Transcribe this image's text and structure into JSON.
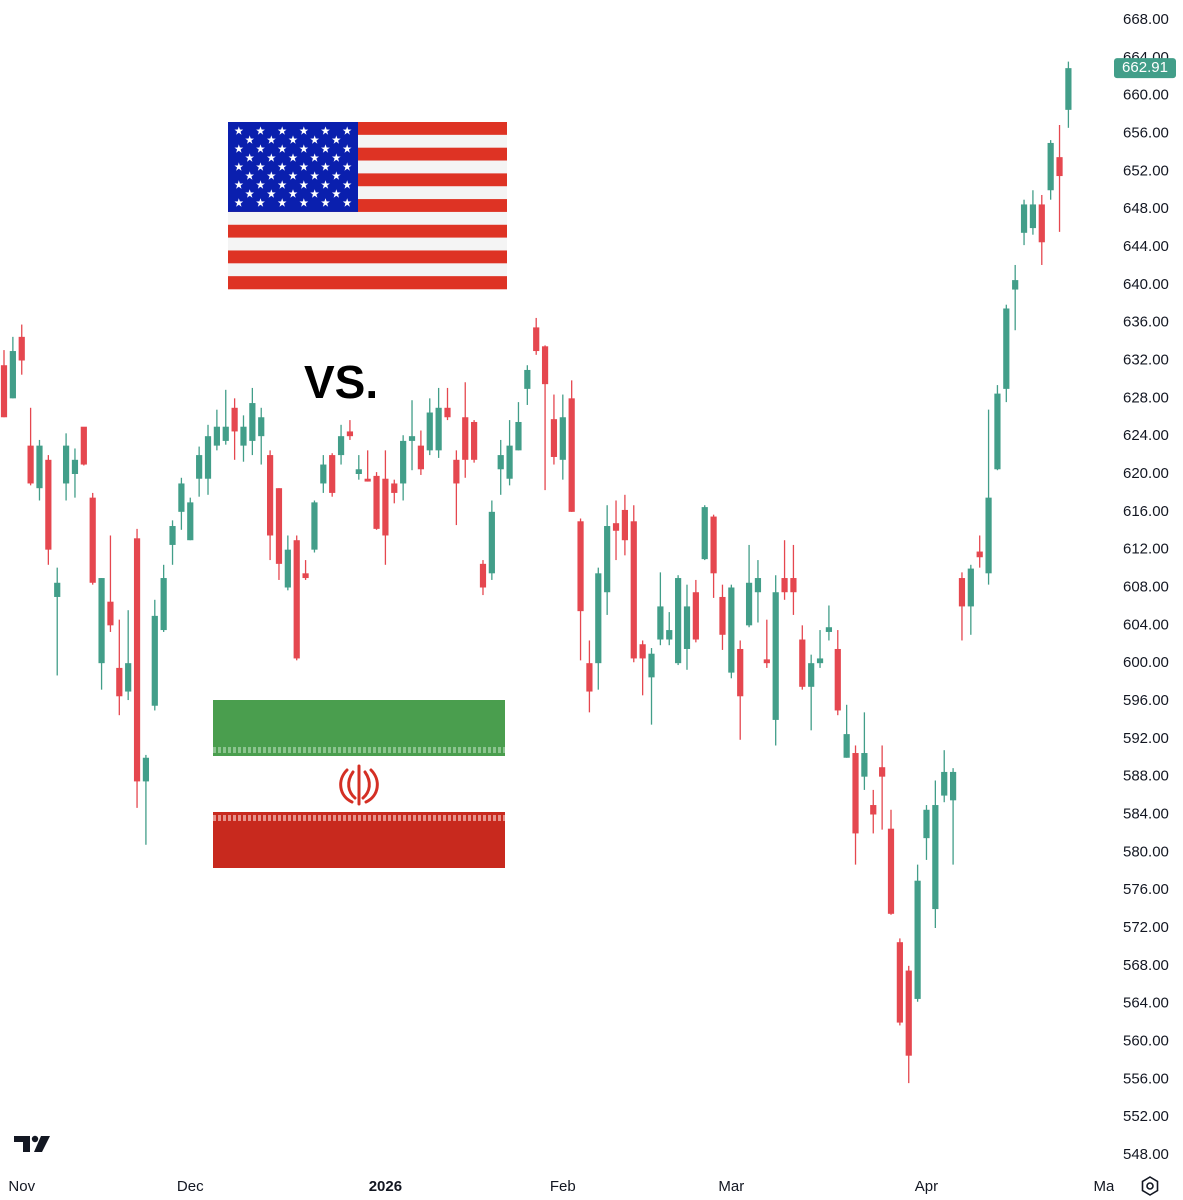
{
  "chart_data": {
    "type": "candlestick",
    "annotation": "VS.",
    "up_color": "#429e89",
    "down_color": "#e5474f",
    "grid": false,
    "categories": [
      null,
      null,
      "Nov",
      null,
      null,
      null,
      null,
      null,
      null,
      null,
      null,
      null,
      null,
      null,
      null,
      null,
      null,
      null,
      null,
      null,
      null,
      "Dec",
      null,
      null,
      null,
      null,
      null,
      null,
      null,
      null,
      null,
      null,
      null,
      null,
      null,
      null,
      null,
      null,
      null,
      null,
      null,
      null,
      null,
      "2026",
      null,
      null,
      null,
      null,
      null,
      null,
      null,
      null,
      null,
      null,
      null,
      null,
      null,
      null,
      null,
      null,
      null,
      null,
      null,
      "Feb",
      null,
      null,
      null,
      null,
      null,
      null,
      null,
      null,
      null,
      null,
      null,
      null,
      null,
      null,
      null,
      null,
      null,
      null,
      "Mar",
      null,
      null,
      null,
      null,
      null,
      null,
      null,
      null,
      null,
      null,
      null,
      null,
      null,
      null,
      null,
      null,
      null,
      null,
      null,
      null,
      null,
      "Apr",
      null,
      null,
      null,
      null,
      null,
      null,
      null,
      null,
      null,
      null,
      null,
      null,
      null,
      null,
      null,
      null,
      null,
      null,
      null,
      "Ma"
    ],
    "open": [
      631.5,
      628,
      634.5,
      623,
      618.5,
      621.5,
      607,
      619,
      620,
      625,
      617.5,
      600,
      606.5,
      599.5,
      597,
      613.2,
      587.5,
      595.5,
      603.5,
      612.5,
      616,
      613,
      619.5,
      619.5,
      623,
      623.5,
      627,
      623,
      623.5,
      624,
      622,
      618.5,
      608,
      613,
      609.5,
      612,
      619,
      622,
      622,
      624.5,
      620,
      619.5,
      619.8,
      619.5,
      619,
      619,
      623.5,
      623,
      622.5,
      622.5,
      627,
      621.5,
      626,
      625.5,
      610.5,
      609.5,
      620.5,
      619.5,
      622.5,
      629,
      635.5,
      633.5,
      625.8,
      621.5,
      628,
      615,
      600,
      600,
      607.5,
      614.8,
      616.2,
      615,
      602,
      598.5,
      602.5,
      602.5,
      600,
      601.5,
      607.5,
      611,
      615.5,
      607,
      599,
      601.5,
      604,
      607.5,
      600.4,
      594,
      609,
      609,
      602.5,
      597.5,
      600,
      603.3,
      601.5,
      590,
      590.5,
      588,
      585,
      589,
      582.5,
      570.5,
      567.5,
      564.5,
      581.5,
      574,
      586,
      585.5,
      609,
      606,
      611.8,
      609.5,
      620.5,
      629,
      639.5,
      645.5,
      646,
      648.5,
      650,
      653.5,
      658.5,
      null,
      null,
      null,
      null
    ],
    "high": [
      633.1,
      634.5,
      635.8,
      627.0,
      623.6,
      622.0,
      610.1,
      624.3,
      622.7,
      624.9,
      618.0,
      609.0,
      613.5,
      604.6,
      605.6,
      614.2,
      590.3,
      606.7,
      610.4,
      615.1,
      619.6,
      617.5,
      622.9,
      625.2,
      626.8,
      628.9,
      628.0,
      626.2,
      629.1,
      627.0,
      622.5,
      618.5,
      613.5,
      613.5,
      610.9,
      617.2,
      622.0,
      622.2,
      625.2,
      625.7,
      622.0,
      622.5,
      620.2,
      622.5,
      619.4,
      624.1,
      627.8,
      624.6,
      628.0,
      629.1,
      629.1,
      622.5,
      629.7,
      625.7,
      610.9,
      617.2,
      623.6,
      625.7,
      627.6,
      631.5,
      636.5,
      633.6,
      628.4,
      628.4,
      629.9,
      615.3,
      602.4,
      610.1,
      616.7,
      617.2,
      617.8,
      616.7,
      602.4,
      601.6,
      609.6,
      605.4,
      609.3,
      608.3,
      608.8,
      616.7,
      615.7,
      608.3,
      608.3,
      602.4,
      612.5,
      610.9,
      604.6,
      609.3,
      613.0,
      612.5,
      604.0,
      600.9,
      603.5,
      606.1,
      603.5,
      595.6,
      591.3,
      594.8,
      586.6,
      591.3,
      584.5,
      570.9,
      568.0,
      578.7,
      585.0,
      587.6,
      590.8,
      588.9,
      609.6,
      610.4,
      613.5,
      626.8,
      629.4,
      637.9,
      642.1,
      649.0,
      650.0,
      649.5,
      655.3,
      656.9,
      663.6,
      null,
      null,
      null,
      null
    ],
    "low": [
      626,
      628,
      630.5,
      618.8,
      617.2,
      610.4,
      598.7,
      617.2,
      617.5,
      620.9,
      608.3,
      597.2,
      603.3,
      594.5,
      596.1,
      584.7,
      580.8,
      595.0,
      603.3,
      610.4,
      614.1,
      613.0,
      617.6,
      617.8,
      622.5,
      623.1,
      621.5,
      621.3,
      622.0,
      621.0,
      610.9,
      608.8,
      607.7,
      600.3,
      608.8,
      611.7,
      618.0,
      617.6,
      621.0,
      623.6,
      619.4,
      619.2,
      614.1,
      610.4,
      616.9,
      617.2,
      620.4,
      619.9,
      622.0,
      621.7,
      625.7,
      614.6,
      619.6,
      621.2,
      607.2,
      608.8,
      617.8,
      618.8,
      622.5,
      627.3,
      632.6,
      618.3,
      621.0,
      619.4,
      616.0,
      600.3,
      594.8,
      597.2,
      605.1,
      610.9,
      611.4,
      600.1,
      596.6,
      593.5,
      601.9,
      601.9,
      599.8,
      599.3,
      602.2,
      610.9,
      606.9,
      601.4,
      598.4,
      591.9,
      603.8,
      604.3,
      599.5,
      591.3,
      606.7,
      605.1,
      597.2,
      592.9,
      599.5,
      602.4,
      594.5,
      590.0,
      578.7,
      586.6,
      582.0,
      582.4,
      573.4,
      561.7,
      555.6,
      564.2,
      579.2,
      572.0,
      585.3,
      578.7,
      602.4,
      603.0,
      610.1,
      608.3,
      620.4,
      627.6,
      635.2,
      644.2,
      645.3,
      642.1,
      649.0,
      645.6,
      656.6,
      null,
      null,
      null,
      null
    ],
    "close": [
      626,
      633,
      632,
      619,
      623,
      612,
      608.5,
      623,
      621.5,
      621,
      608.5,
      609,
      604,
      596.5,
      600,
      587.5,
      590,
      605,
      609,
      614.5,
      619,
      617,
      622,
      624,
      625,
      625,
      624.5,
      625,
      627.5,
      626,
      613.5,
      610.5,
      612,
      600.5,
      609,
      617,
      621,
      618,
      624,
      624,
      620.5,
      619.2,
      614.2,
      613.5,
      618,
      623.5,
      624,
      620.5,
      626.5,
      627,
      626,
      619,
      621.5,
      621.5,
      608,
      616,
      622,
      623,
      625.5,
      631,
      633,
      629.5,
      621.8,
      626,
      616,
      605.5,
      597,
      609.5,
      614.5,
      614,
      613,
      600.5,
      600.5,
      601,
      606,
      603.5,
      609,
      606,
      602.5,
      616.5,
      609.5,
      603,
      608,
      596.5,
      608.5,
      609,
      600,
      607.5,
      607.5,
      607.5,
      597.5,
      600,
      600.5,
      603.8,
      595,
      592.5,
      582,
      590.5,
      584,
      588,
      573.5,
      562,
      558.5,
      577,
      584.5,
      585,
      588.5,
      588.5,
      606,
      610,
      611.2,
      617.5,
      628.5,
      637.5,
      640.5,
      648.5,
      648.5,
      644.5,
      655,
      651.5,
      662.91,
      null,
      null,
      null,
      null
    ],
    "ylim": [
      548,
      668
    ],
    "yticks": [
      {
        "value": 548,
        "label": "548.00"
      },
      {
        "value": 552,
        "label": "552.00"
      },
      {
        "value": 556,
        "label": "556.00"
      },
      {
        "value": 560,
        "label": "560.00"
      },
      {
        "value": 564,
        "label": "564.00"
      },
      {
        "value": 568,
        "label": "568.00"
      },
      {
        "value": 572,
        "label": "572.00"
      },
      {
        "value": 576,
        "label": "576.00"
      },
      {
        "value": 580,
        "label": "580.00"
      },
      {
        "value": 584,
        "label": "584.00"
      },
      {
        "value": 588,
        "label": "588.00"
      },
      {
        "value": 592,
        "label": "592.00"
      },
      {
        "value": 596,
        "label": "596.00"
      },
      {
        "value": 600,
        "label": "600.00"
      },
      {
        "value": 604,
        "label": "604.00"
      },
      {
        "value": 608,
        "label": "608.00"
      },
      {
        "value": 612,
        "label": "612.00"
      },
      {
        "value": 616,
        "label": "616.00"
      },
      {
        "value": 620,
        "label": "620.00"
      },
      {
        "value": 624,
        "label": "624.00"
      },
      {
        "value": 628,
        "label": "628.00"
      },
      {
        "value": 632,
        "label": "632.00"
      },
      {
        "value": 636,
        "label": "636.00"
      },
      {
        "value": 640,
        "label": "640.00"
      },
      {
        "value": 644,
        "label": "644.00"
      },
      {
        "value": 648,
        "label": "648.00"
      },
      {
        "value": 652,
        "label": "652.00"
      },
      {
        "value": 656,
        "label": "656.00"
      },
      {
        "value": 660,
        "label": "660.00"
      },
      {
        "value": 664,
        "label": "664.00"
      },
      {
        "value": 668,
        "label": "668.00"
      }
    ]
  }
}
